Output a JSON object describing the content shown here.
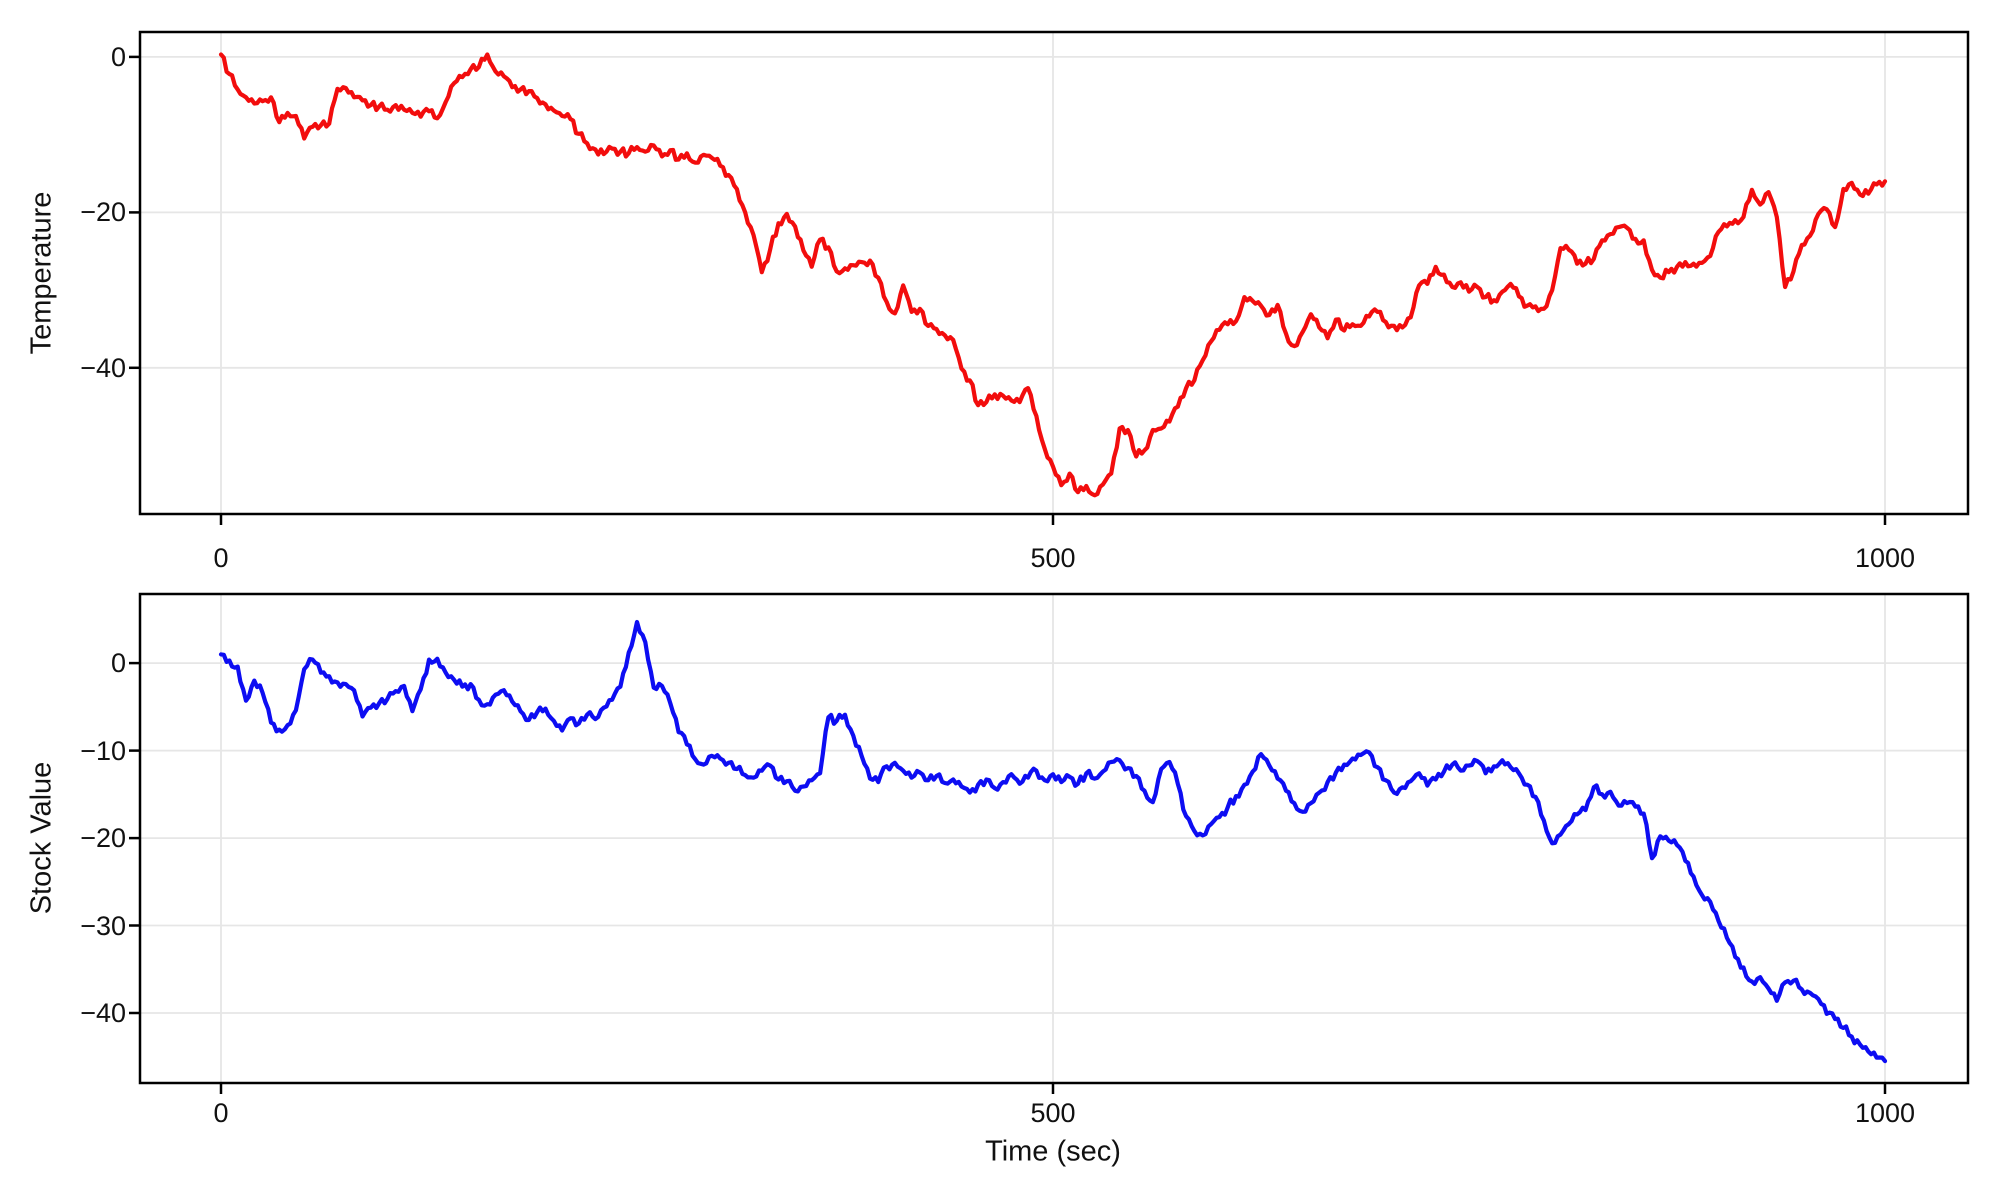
{
  "figure": {
    "background": "#ffffff",
    "grid_color": "#e6e6e6",
    "frame_color": "#000000",
    "text_color": "#111111"
  },
  "chart_data": [
    {
      "type": "line",
      "panel": "top",
      "title": "",
      "xlabel": "",
      "ylabel": "Temperature",
      "xlim": [
        -48.7,
        1049.9
      ],
      "ylim": [
        -58.8,
        3.2
      ],
      "grid": true,
      "legend_position": "none",
      "x_ticks": [
        {
          "value": 0,
          "label": "0"
        },
        {
          "value": 500,
          "label": "500"
        },
        {
          "value": 1000,
          "label": "1000"
        }
      ],
      "y_ticks": [
        {
          "value": 0,
          "label": "0"
        },
        {
          "value": -20,
          "label": "−20"
        },
        {
          "value": -40,
          "label": "−40"
        }
      ],
      "series": [
        {
          "name": "Temperature",
          "color": "#f20d0d",
          "x_start": 0,
          "x_step": 5,
          "y": [
            0.3,
            -2.2,
            -4.2,
            -5.2,
            -6.0,
            -5.7,
            -5.2,
            -8.4,
            -7.2,
            -7.6,
            -10.5,
            -9.0,
            -8.8,
            -8.6,
            -4.1,
            -4.0,
            -5.2,
            -5.6,
            -6.2,
            -6.4,
            -6.8,
            -6.2,
            -6.8,
            -7.2,
            -7.7,
            -7.0,
            -7.9,
            -5.8,
            -3.4,
            -2.6,
            -1.6,
            -1.3,
            0.3,
            -1.9,
            -2.5,
            -3.9,
            -4.2,
            -4.4,
            -5.3,
            -6.1,
            -6.9,
            -7.6,
            -8.0,
            -9.9,
            -11.1,
            -11.9,
            -12.5,
            -11.8,
            -12.2,
            -12.4,
            -11.6,
            -12.2,
            -11.4,
            -12.8,
            -12.0,
            -13.2,
            -12.4,
            -13.6,
            -12.6,
            -13.0,
            -14.0,
            -15.2,
            -17.0,
            -20.0,
            -22.9,
            -27.7,
            -24.8,
            -21.4,
            -20.2,
            -21.8,
            -24.9,
            -27.0,
            -23.5,
            -24.5,
            -27.6,
            -27.2,
            -26.8,
            -26.4,
            -26.2,
            -28.4,
            -31.5,
            -33.0,
            -29.4,
            -32.8,
            -32.4,
            -34.6,
            -35.0,
            -35.8,
            -36.4,
            -40.1,
            -41.6,
            -44.8,
            -44.4,
            -43.4,
            -43.6,
            -44.2,
            -44.4,
            -42.6,
            -46.2,
            -50.4,
            -52.7,
            -55.1,
            -53.6,
            -56.0,
            -55.2,
            -56.4,
            -55.0,
            -53.6,
            -47.8,
            -48.0,
            -51.4,
            -50.6,
            -48.0,
            -47.8,
            -46.9,
            -45.0,
            -42.6,
            -41.6,
            -39.0,
            -36.6,
            -35.1,
            -34.4,
            -34.0,
            -30.9,
            -31.4,
            -32.0,
            -33.2,
            -31.9,
            -35.6,
            -37.2,
            -35.4,
            -33.1,
            -34.8,
            -36.2,
            -33.8,
            -35.2,
            -34.4,
            -34.6,
            -33.4,
            -32.8,
            -34.1,
            -34.6,
            -34.8,
            -33.5,
            -29.4,
            -29.2,
            -27.0,
            -28.0,
            -29.6,
            -29.0,
            -30.2,
            -29.6,
            -30.9,
            -31.3,
            -30.2,
            -29.2,
            -30.8,
            -32.0,
            -32.1,
            -32.4,
            -30.0,
            -24.6,
            -24.8,
            -26.6,
            -26.6,
            -26.0,
            -23.6,
            -22.8,
            -21.9,
            -22.0,
            -23.4,
            -23.6,
            -27.4,
            -28.4,
            -27.7,
            -27.0,
            -26.4,
            -26.6,
            -26.5,
            -25.6,
            -22.5,
            -21.8,
            -21.0,
            -20.6,
            -17.1,
            -19.0,
            -17.4,
            -20.6,
            -29.6,
            -27.6,
            -24.2,
            -23.0,
            -20.2,
            -19.6,
            -21.9,
            -17.0,
            -16.2,
            -17.7,
            -17.6,
            -16.4,
            -16.0
          ]
        }
      ]
    },
    {
      "type": "line",
      "panel": "bottom",
      "title": "",
      "xlabel": "Time (sec)",
      "ylabel": "Stock Value",
      "xlim": [
        -48.7,
        1049.9
      ],
      "ylim": [
        -48.0,
        7.9
      ],
      "grid": true,
      "legend_position": "none",
      "x_ticks": [
        {
          "value": 0,
          "label": "0"
        },
        {
          "value": 500,
          "label": "500"
        },
        {
          "value": 1000,
          "label": "1000"
        }
      ],
      "y_ticks": [
        {
          "value": 0,
          "label": "0"
        },
        {
          "value": -10,
          "label": "−10"
        },
        {
          "value": -20,
          "label": "−20"
        },
        {
          "value": -30,
          "label": "−30"
        },
        {
          "value": -40,
          "label": "−40"
        }
      ],
      "series": [
        {
          "name": "Stock Value",
          "color": "#0d0df2",
          "x_start": 0,
          "x_step": 5,
          "y": [
            1.0,
            0.3,
            -0.4,
            -4.3,
            -2.0,
            -3.4,
            -6.8,
            -7.6,
            -7.1,
            -5.4,
            -0.7,
            0.4,
            -1.1,
            -1.5,
            -2.2,
            -2.4,
            -3.1,
            -6.1,
            -5.1,
            -4.6,
            -4.1,
            -3.2,
            -2.6,
            -5.5,
            -3.0,
            0.4,
            0.5,
            -1.1,
            -1.9,
            -2.7,
            -2.4,
            -4.2,
            -4.7,
            -3.6,
            -3.1,
            -4.4,
            -5.5,
            -6.5,
            -5.6,
            -5.2,
            -6.6,
            -7.7,
            -6.3,
            -6.9,
            -5.9,
            -6.4,
            -5.1,
            -4.2,
            -2.7,
            1.2,
            4.7,
            2.4,
            -2.8,
            -2.6,
            -4.6,
            -7.9,
            -9.3,
            -11.0,
            -11.6,
            -10.6,
            -10.9,
            -11.4,
            -12.1,
            -12.8,
            -13.1,
            -12.3,
            -11.7,
            -13.3,
            -13.5,
            -14.6,
            -14.1,
            -13.4,
            -12.6,
            -6.2,
            -6.6,
            -5.9,
            -8.3,
            -10.6,
            -13.2,
            -13.6,
            -11.8,
            -11.4,
            -12.3,
            -13.1,
            -12.5,
            -13.4,
            -12.9,
            -13.7,
            -13.3,
            -14.1,
            -14.8,
            -13.9,
            -13.3,
            -14.3,
            -13.6,
            -12.7,
            -13.8,
            -13.1,
            -12.3,
            -13.4,
            -12.7,
            -13.6,
            -13.0,
            -13.8,
            -12.6,
            -13.2,
            -12.4,
            -11.3,
            -11.1,
            -12.0,
            -12.9,
            -14.6,
            -15.9,
            -12.1,
            -11.3,
            -13.8,
            -17.5,
            -19.2,
            -19.7,
            -18.4,
            -17.6,
            -16.5,
            -15.2,
            -13.9,
            -12.4,
            -10.4,
            -11.7,
            -13.2,
            -14.6,
            -16.0,
            -17.0,
            -16.0,
            -14.8,
            -13.6,
            -12.5,
            -11.6,
            -10.9,
            -10.5,
            -10.2,
            -11.9,
            -13.4,
            -14.8,
            -14.2,
            -13.5,
            -12.6,
            -14.0,
            -13.3,
            -12.4,
            -11.6,
            -12.3,
            -11.7,
            -11.2,
            -12.6,
            -11.8,
            -11.1,
            -11.9,
            -12.6,
            -13.9,
            -15.3,
            -18.0,
            -20.6,
            -19.6,
            -18.4,
            -17.3,
            -16.8,
            -14.2,
            -15.0,
            -14.7,
            -16.3,
            -16.0,
            -16.4,
            -17.2,
            -22.3,
            -19.8,
            -20.3,
            -20.8,
            -22.6,
            -24.4,
            -26.5,
            -27.3,
            -29.5,
            -31.4,
            -33.6,
            -34.8,
            -36.4,
            -35.9,
            -37.2,
            -38.6,
            -36.5,
            -36.3,
            -37.3,
            -37.7,
            -38.4,
            -40.1,
            -40.7,
            -41.7,
            -42.7,
            -43.6,
            -44.4,
            -45.1,
            -45.5
          ]
        }
      ]
    }
  ]
}
